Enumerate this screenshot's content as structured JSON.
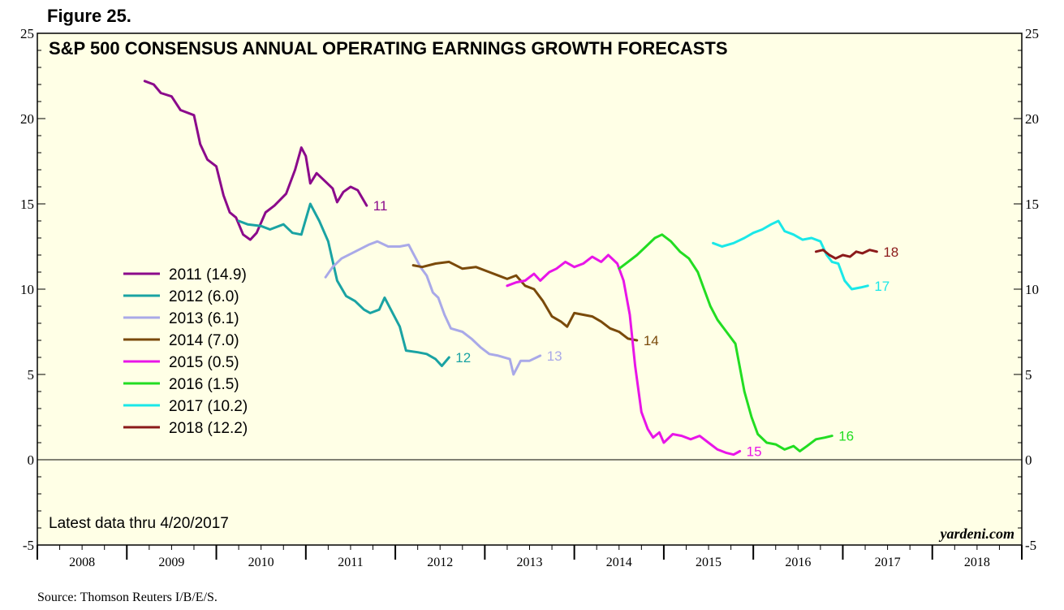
{
  "figure_label": "Figure 25.",
  "source": "Source: Thomson Reuters I/B/E/S.",
  "brand": "yardeni.com",
  "note": "Latest data thru 4/20/2017",
  "chart_data": {
    "type": "line",
    "title": "S&P 500 CONSENSUS ANNUAL OPERATING EARNINGS GROWTH FORECASTS",
    "xlabel": "",
    "ylabel": "",
    "xlim": [
      2008.0,
      2019.0
    ],
    "ylim": [
      -5,
      25
    ],
    "y_ticks": [
      -5,
      0,
      5,
      10,
      15,
      20,
      25
    ],
    "x_year_labels": [
      "2008",
      "2009",
      "2010",
      "2011",
      "2012",
      "2013",
      "2014",
      "2015",
      "2016",
      "2017",
      "2018"
    ],
    "legend_position": "left-middle",
    "grid": false,
    "series": [
      {
        "name": "2011 (14.9)",
        "end_label": "11",
        "color": "#8b0a8b",
        "points": [
          [
            2009.2,
            22.2
          ],
          [
            2009.3,
            22.0
          ],
          [
            2009.38,
            21.5
          ],
          [
            2009.5,
            21.3
          ],
          [
            2009.6,
            20.5
          ],
          [
            2009.75,
            20.2
          ],
          [
            2009.82,
            18.5
          ],
          [
            2009.9,
            17.6
          ],
          [
            2010.0,
            17.2
          ],
          [
            2010.08,
            15.5
          ],
          [
            2010.15,
            14.5
          ],
          [
            2010.22,
            14.2
          ],
          [
            2010.3,
            13.2
          ],
          [
            2010.38,
            12.9
          ],
          [
            2010.45,
            13.3
          ],
          [
            2010.55,
            14.5
          ],
          [
            2010.65,
            14.9
          ],
          [
            2010.78,
            15.6
          ],
          [
            2010.88,
            17.0
          ],
          [
            2010.95,
            18.3
          ],
          [
            2011.0,
            17.8
          ],
          [
            2011.05,
            16.2
          ],
          [
            2011.12,
            16.8
          ],
          [
            2011.2,
            16.4
          ],
          [
            2011.3,
            15.9
          ],
          [
            2011.35,
            15.1
          ],
          [
            2011.42,
            15.7
          ],
          [
            2011.5,
            16.0
          ],
          [
            2011.58,
            15.8
          ],
          [
            2011.68,
            14.9
          ]
        ]
      },
      {
        "name": "2012 (6.0)",
        "end_label": "12",
        "color": "#1aa3a3",
        "points": [
          [
            2010.25,
            14.0
          ],
          [
            2010.35,
            13.8
          ],
          [
            2010.5,
            13.7
          ],
          [
            2010.6,
            13.5
          ],
          [
            2010.75,
            13.8
          ],
          [
            2010.85,
            13.3
          ],
          [
            2010.95,
            13.2
          ],
          [
            2011.05,
            15.0
          ],
          [
            2011.15,
            14.0
          ],
          [
            2011.25,
            12.8
          ],
          [
            2011.35,
            10.5
          ],
          [
            2011.45,
            9.6
          ],
          [
            2011.55,
            9.3
          ],
          [
            2011.65,
            8.8
          ],
          [
            2011.72,
            8.6
          ],
          [
            2011.82,
            8.8
          ],
          [
            2011.88,
            9.5
          ],
          [
            2011.95,
            8.8
          ],
          [
            2012.05,
            7.8
          ],
          [
            2012.12,
            6.4
          ],
          [
            2012.25,
            6.3
          ],
          [
            2012.35,
            6.2
          ],
          [
            2012.45,
            5.9
          ],
          [
            2012.52,
            5.5
          ],
          [
            2012.6,
            6.0
          ]
        ]
      },
      {
        "name": "2013 (6.1)",
        "end_label": "13",
        "color": "#a9a9e8",
        "points": [
          [
            2011.22,
            10.7
          ],
          [
            2011.3,
            11.3
          ],
          [
            2011.4,
            11.8
          ],
          [
            2011.55,
            12.2
          ],
          [
            2011.7,
            12.6
          ],
          [
            2011.8,
            12.8
          ],
          [
            2011.92,
            12.5
          ],
          [
            2012.05,
            12.5
          ],
          [
            2012.15,
            12.6
          ],
          [
            2012.2,
            12.1
          ],
          [
            2012.28,
            11.3
          ],
          [
            2012.35,
            10.8
          ],
          [
            2012.42,
            9.8
          ],
          [
            2012.48,
            9.5
          ],
          [
            2012.55,
            8.5
          ],
          [
            2012.62,
            7.7
          ],
          [
            2012.75,
            7.5
          ],
          [
            2012.85,
            7.1
          ],
          [
            2012.95,
            6.6
          ],
          [
            2013.05,
            6.2
          ],
          [
            2013.15,
            6.1
          ],
          [
            2013.28,
            5.9
          ],
          [
            2013.32,
            5.0
          ],
          [
            2013.4,
            5.8
          ],
          [
            2013.5,
            5.8
          ],
          [
            2013.62,
            6.1
          ]
        ]
      },
      {
        "name": "2014 (7.0)",
        "end_label": "14",
        "color": "#7a4a0a",
        "points": [
          [
            2012.2,
            11.4
          ],
          [
            2012.3,
            11.3
          ],
          [
            2012.45,
            11.5
          ],
          [
            2012.6,
            11.6
          ],
          [
            2012.75,
            11.2
          ],
          [
            2012.9,
            11.3
          ],
          [
            2013.05,
            11.0
          ],
          [
            2013.15,
            10.8
          ],
          [
            2013.25,
            10.6
          ],
          [
            2013.35,
            10.8
          ],
          [
            2013.45,
            10.2
          ],
          [
            2013.55,
            10.0
          ],
          [
            2013.65,
            9.3
          ],
          [
            2013.75,
            8.4
          ],
          [
            2013.85,
            8.1
          ],
          [
            2013.92,
            7.8
          ],
          [
            2014.0,
            8.6
          ],
          [
            2014.1,
            8.5
          ],
          [
            2014.2,
            8.4
          ],
          [
            2014.3,
            8.1
          ],
          [
            2014.4,
            7.7
          ],
          [
            2014.5,
            7.5
          ],
          [
            2014.6,
            7.1
          ],
          [
            2014.7,
            7.0
          ]
        ]
      },
      {
        "name": "2015 (0.5)",
        "end_label": "15",
        "color": "#e815e8",
        "points": [
          [
            2013.25,
            10.2
          ],
          [
            2013.35,
            10.4
          ],
          [
            2013.45,
            10.5
          ],
          [
            2013.55,
            10.9
          ],
          [
            2013.62,
            10.5
          ],
          [
            2013.72,
            11.0
          ],
          [
            2013.8,
            11.2
          ],
          [
            2013.9,
            11.6
          ],
          [
            2014.0,
            11.3
          ],
          [
            2014.1,
            11.5
          ],
          [
            2014.2,
            11.9
          ],
          [
            2014.3,
            11.6
          ],
          [
            2014.38,
            12.0
          ],
          [
            2014.48,
            11.5
          ],
          [
            2014.55,
            10.5
          ],
          [
            2014.62,
            8.5
          ],
          [
            2014.68,
            5.5
          ],
          [
            2014.75,
            2.8
          ],
          [
            2014.82,
            1.8
          ],
          [
            2014.88,
            1.3
          ],
          [
            2014.95,
            1.6
          ],
          [
            2015.0,
            1.0
          ],
          [
            2015.1,
            1.5
          ],
          [
            2015.2,
            1.4
          ],
          [
            2015.3,
            1.2
          ],
          [
            2015.4,
            1.4
          ],
          [
            2015.5,
            1.0
          ],
          [
            2015.6,
            0.6
          ],
          [
            2015.7,
            0.4
          ],
          [
            2015.78,
            0.3
          ],
          [
            2015.85,
            0.5
          ]
        ]
      },
      {
        "name": "2016 (1.5)",
        "end_label": "16",
        "color": "#22dd22",
        "points": [
          [
            2014.5,
            11.2
          ],
          [
            2014.6,
            11.6
          ],
          [
            2014.7,
            12.0
          ],
          [
            2014.8,
            12.5
          ],
          [
            2014.9,
            13.0
          ],
          [
            2014.98,
            13.2
          ],
          [
            2015.08,
            12.8
          ],
          [
            2015.18,
            12.2
          ],
          [
            2015.28,
            11.8
          ],
          [
            2015.38,
            11.0
          ],
          [
            2015.45,
            10.0
          ],
          [
            2015.52,
            9.0
          ],
          [
            2015.6,
            8.2
          ],
          [
            2015.7,
            7.5
          ],
          [
            2015.8,
            6.8
          ],
          [
            2015.9,
            4.0
          ],
          [
            2015.98,
            2.5
          ],
          [
            2016.05,
            1.5
          ],
          [
            2016.15,
            1.0
          ],
          [
            2016.25,
            0.9
          ],
          [
            2016.35,
            0.6
          ],
          [
            2016.45,
            0.8
          ],
          [
            2016.52,
            0.5
          ],
          [
            2016.6,
            0.8
          ],
          [
            2016.7,
            1.2
          ],
          [
            2016.8,
            1.3
          ],
          [
            2016.88,
            1.4
          ]
        ]
      },
      {
        "name": "2017 (10.2)",
        "end_label": "17",
        "color": "#1ae8e8",
        "points": [
          [
            2015.55,
            12.7
          ],
          [
            2015.65,
            12.5
          ],
          [
            2015.78,
            12.7
          ],
          [
            2015.9,
            13.0
          ],
          [
            2016.0,
            13.3
          ],
          [
            2016.1,
            13.5
          ],
          [
            2016.2,
            13.8
          ],
          [
            2016.28,
            14.0
          ],
          [
            2016.35,
            13.4
          ],
          [
            2016.45,
            13.2
          ],
          [
            2016.55,
            12.9
          ],
          [
            2016.65,
            13.0
          ],
          [
            2016.75,
            12.8
          ],
          [
            2016.82,
            12.0
          ],
          [
            2016.88,
            11.6
          ],
          [
            2016.95,
            11.5
          ],
          [
            2017.02,
            10.5
          ],
          [
            2017.1,
            10.0
          ],
          [
            2017.2,
            10.1
          ],
          [
            2017.28,
            10.2
          ]
        ]
      },
      {
        "name": "2018 (12.2)",
        "end_label": "18",
        "color": "#8b1a1a",
        "points": [
          [
            2016.7,
            12.2
          ],
          [
            2016.78,
            12.3
          ],
          [
            2016.85,
            12.0
          ],
          [
            2016.92,
            11.8
          ],
          [
            2017.0,
            12.0
          ],
          [
            2017.08,
            11.9
          ],
          [
            2017.15,
            12.2
          ],
          [
            2017.22,
            12.1
          ],
          [
            2017.3,
            12.3
          ],
          [
            2017.38,
            12.2
          ]
        ]
      }
    ]
  }
}
